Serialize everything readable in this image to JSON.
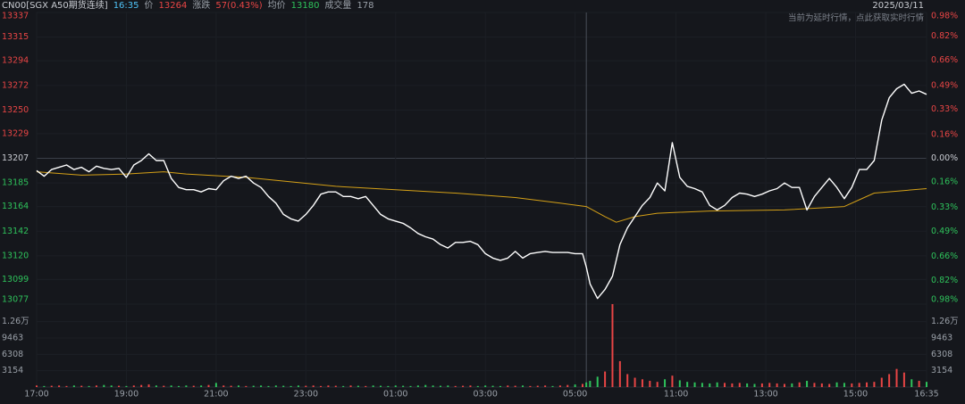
{
  "header": {
    "symbol": "CN00[SGX A50期货连续]",
    "time": "16:35",
    "price_label": "价",
    "price": "13264",
    "change_label": "涨跌",
    "change": "57(0.43%)",
    "avg_label": "均价",
    "avg": "13180",
    "volume_label": "成交量",
    "volume": "178",
    "date": "2025/03/11",
    "notice": "当前为延时行情，点此获取实时行情"
  },
  "chart_data": {
    "type": "line",
    "xlim": [
      0,
      1190
    ],
    "xticks": [
      {
        "value": 0,
        "label": "17:00"
      },
      {
        "value": 120,
        "label": "19:00"
      },
      {
        "value": 240,
        "label": "21:00"
      },
      {
        "value": 360,
        "label": "23:00"
      },
      {
        "value": 480,
        "label": "01:00"
      },
      {
        "value": 600,
        "label": "03:00"
      },
      {
        "value": 720,
        "label": "05:00"
      },
      {
        "value": 855,
        "label": "11:00"
      },
      {
        "value": 975,
        "label": "13:00"
      },
      {
        "value": 1095,
        "label": "15:00"
      },
      {
        "value": 1190,
        "label": "16:35"
      }
    ],
    "session_break": 735,
    "ylim": [
      13077,
      13337
    ],
    "yticks": [
      13077,
      13099,
      13120,
      13142,
      13164,
      13185,
      13207,
      13229,
      13250,
      13272,
      13294,
      13315,
      13337
    ],
    "y2lim": [
      -0.98,
      0.98
    ],
    "y2ticks": [
      {
        "value": -0.98,
        "label": "0.98%"
      },
      {
        "value": -0.82,
        "label": "0.82%"
      },
      {
        "value": -0.66,
        "label": "0.66%"
      },
      {
        "value": -0.49,
        "label": "0.49%"
      },
      {
        "value": -0.33,
        "label": "0.33%"
      },
      {
        "value": -0.16,
        "label": "0.16%"
      },
      {
        "value": 0,
        "label": "0.00%"
      },
      {
        "value": 0.16,
        "label": "0.16%"
      },
      {
        "value": 0.33,
        "label": "0.33%"
      },
      {
        "value": 0.49,
        "label": "0.49%"
      },
      {
        "value": 0.66,
        "label": "0.66%"
      },
      {
        "value": 0.82,
        "label": "0.82%"
      },
      {
        "value": 0.98,
        "label": "0.98%"
      }
    ],
    "up_color": "#e84545",
    "down_color": "#2ec25b",
    "series": [
      {
        "color": "#ffffff",
        "x": [
          0,
          10,
          20,
          30,
          40,
          50,
          60,
          70,
          80,
          90,
          100,
          110,
          120,
          130,
          140,
          150,
          160,
          170,
          180,
          190,
          200,
          210,
          220,
          230,
          240,
          250,
          260,
          270,
          280,
          290,
          300,
          310,
          320,
          330,
          340,
          350,
          360,
          370,
          380,
          390,
          400,
          410,
          420,
          430,
          440,
          450,
          460,
          470,
          480,
          490,
          500,
          510,
          520,
          530,
          540,
          550,
          560,
          570,
          580,
          590,
          600,
          610,
          620,
          630,
          640,
          650,
          660,
          670,
          680,
          690,
          700,
          710,
          720,
          730,
          735,
          740,
          750,
          760,
          770,
          780,
          790,
          800,
          810,
          820,
          830,
          840,
          850,
          860,
          870,
          880,
          890,
          900,
          910,
          920,
          930,
          940,
          950,
          960,
          970,
          980,
          990,
          1000,
          1010,
          1020,
          1030,
          1040,
          1050,
          1060,
          1070,
          1080,
          1090,
          1100,
          1110,
          1120,
          1130,
          1140,
          1150,
          1160,
          1170,
          1180,
          1190
        ],
        "values": [
          13196,
          13191,
          13197,
          13199,
          13201,
          13197,
          13199,
          13195,
          13200,
          13198,
          13197,
          13198,
          13190,
          13201,
          13205,
          13211,
          13205,
          13205,
          13189,
          13181,
          13179,
          13179,
          13177,
          13180,
          13179,
          13187,
          13191,
          13189,
          13191,
          13185,
          13181,
          13173,
          13167,
          13157,
          13153,
          13151,
          13157,
          13165,
          13175,
          13177,
          13177,
          13173,
          13173,
          13171,
          13173,
          13165,
          13157,
          13153,
          13151,
          13149,
          13145,
          13140,
          13137,
          13135,
          13130,
          13127,
          13132,
          13132,
          13133,
          13130,
          13122,
          13118,
          13116,
          13118,
          13124,
          13118,
          13122,
          13123,
          13124,
          13123,
          13123,
          13123,
          13122,
          13122,
          13110,
          13095,
          13082,
          13090,
          13102,
          13130,
          13145,
          13155,
          13165,
          13172,
          13185,
          13178,
          13221,
          13190,
          13182,
          13180,
          13177,
          13165,
          13161,
          13165,
          13172,
          13176,
          13175,
          13173,
          13175,
          13178,
          13180,
          13185,
          13181,
          13181,
          13161,
          13173,
          13181,
          13189,
          13181,
          13171,
          13181,
          13197,
          13197,
          13205,
          13241,
          13261,
          13269,
          13273,
          13265,
          13267,
          13264
        ]
      },
      {
        "color": "#d4a017",
        "x": [
          0,
          60,
          120,
          170,
          200,
          280,
          340,
          400,
          480,
          560,
          640,
          700,
          735,
          760,
          775,
          800,
          830,
          900,
          1000,
          1080,
          1100,
          1120,
          1190
        ],
        "values": [
          13195,
          13192,
          13193,
          13195,
          13193,
          13190,
          13186,
          13182,
          13179,
          13176,
          13172,
          13167,
          13164,
          13155,
          13150,
          13155,
          13158,
          13160,
          13161,
          13164,
          13170,
          13176,
          13180
        ]
      }
    ],
    "volume": {
      "ylim": [
        0,
        16000
      ],
      "yticks": [
        3154,
        6308,
        9463,
        {
          "value": 12617,
          "label": "1.26万"
        }
      ],
      "values": [
        300,
        200,
        250,
        300,
        200,
        300,
        250,
        200,
        300,
        400,
        300,
        250,
        200,
        300,
        400,
        500,
        300,
        250,
        300,
        200,
        300,
        250,
        300,
        400,
        800,
        300,
        250,
        300,
        200,
        250,
        300,
        200,
        300,
        250,
        200,
        300,
        250,
        300,
        200,
        300,
        250,
        200,
        300,
        250,
        200,
        300,
        250,
        200,
        300,
        250,
        200,
        300,
        400,
        300,
        250,
        300,
        200,
        250,
        300,
        200,
        300,
        250,
        200,
        300,
        250,
        300,
        200,
        250,
        300,
        200,
        300,
        400,
        500,
        600,
        900,
        1200,
        2000,
        3000,
        16000,
        5000,
        2500,
        1800,
        1500,
        1200,
        1000,
        1500,
        2200,
        1300,
        1000,
        900,
        800,
        700,
        900,
        800,
        700,
        800,
        700,
        600,
        700,
        800,
        700,
        600,
        700,
        900,
        1200,
        800,
        700,
        600,
        900,
        800,
        700,
        800,
        900,
        1000,
        1800,
        2500,
        3500,
        2800,
        1500,
        1200,
        1000
      ]
    }
  }
}
